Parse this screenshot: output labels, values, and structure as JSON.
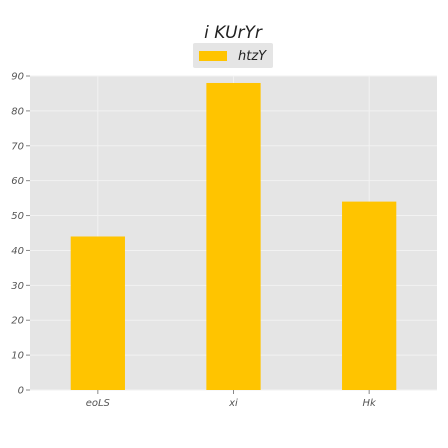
{
  "chart_data": {
    "type": "bar",
    "title": "i KUrYr",
    "categories": [
      "eoLS",
      "xi",
      "Hk"
    ],
    "series": [
      {
        "name": "htzY",
        "values": [
          44,
          88,
          54
        ],
        "color": "#FFC400"
      }
    ],
    "xlabel": "",
    "ylabel": "",
    "ylim": [
      0,
      90
    ],
    "yticks": [
      0,
      10,
      20,
      30,
      40,
      50,
      60,
      70,
      80,
      90
    ],
    "grid": true,
    "legend": "top-center",
    "plot_background": "#E5E5E5",
    "grid_color": "#F2F2F2"
  }
}
